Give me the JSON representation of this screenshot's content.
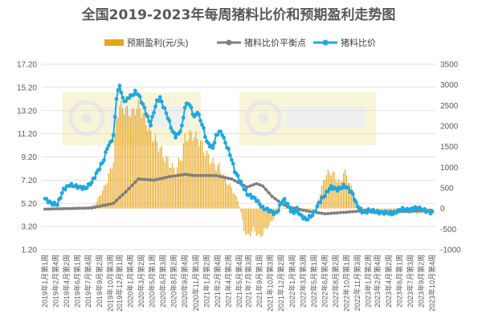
{
  "chart_data": {
    "type": "bar+line",
    "title": "全国2019-2023年每周猪料比价和预期盈利走势图",
    "legend": [
      {
        "key": "profit",
        "label": "预期盈利(元/头)",
        "color": "#e8a317"
      },
      {
        "key": "breakeven",
        "label": "猪料比价平衡点",
        "color": "#7f7f7f"
      },
      {
        "key": "ratio",
        "label": "猪料比价",
        "color": "#1fa8e0"
      }
    ],
    "left_axis": {
      "min": 1.2,
      "max": 17.2,
      "ticks": [
        "1.20",
        "3.20",
        "5.20",
        "7.20",
        "9.20",
        "11.20",
        "13.20",
        "15.20",
        "17.20"
      ]
    },
    "right_axis": {
      "min": -1000,
      "max": 3500,
      "ticks": [
        "-1000",
        "-500",
        "0",
        "500",
        "1000",
        "1500",
        "2000",
        "2500",
        "3000",
        "3500"
      ]
    },
    "x_tick_labels": [
      "2019年1月第1周",
      "2019年2月第4周",
      "2019年4月第2周",
      "2019年6月第1周",
      "2019年7月第4周",
      "2019年9月第2周",
      "2019年10月第3周",
      "2019年12月第1周",
      "2020年1月第4周",
      "2020年3月第2周",
      "2020年5月第1周",
      "2020年6月第3周",
      "2020年8月第2周",
      "2020年9月第4周",
      "2020年11月第3周",
      "2021年1月第2周",
      "2021年2月第4周",
      "2021年4月第2周",
      "2021年5月第4周",
      "2021年7月第3周",
      "2021年9月第1周",
      "2021年10月第3周",
      "2021年12月第2周",
      "2022年1月第4周",
      "2022年3月第3周",
      "2022年5月第1周",
      "2022年6月第4周",
      "2022年8月第2周",
      "2022年10月第1周",
      "2022年11月第3周",
      "2023年1月第2周",
      "2023年2月第4周",
      "2023年4月第2周",
      "2023年6月第1周",
      "2023年7月第3周",
      "2023年9月第2周",
      "2023年10月第4周"
    ],
    "week_count": 250,
    "ratio_keypoints": [
      [
        0,
        5.6
      ],
      [
        4,
        5.2
      ],
      [
        8,
        5.1
      ],
      [
        12,
        6.4
      ],
      [
        16,
        6.8
      ],
      [
        22,
        6.6
      ],
      [
        26,
        6.5
      ],
      [
        30,
        7.0
      ],
      [
        34,
        8.0
      ],
      [
        38,
        9.0
      ],
      [
        40,
        10.0
      ],
      [
        42,
        10.4
      ],
      [
        44,
        11.0
      ],
      [
        46,
        14.3
      ],
      [
        48,
        15.4
      ],
      [
        50,
        14.2
      ],
      [
        52,
        14.0
      ],
      [
        54,
        14.4
      ],
      [
        56,
        14.5
      ],
      [
        58,
        14.8
      ],
      [
        60,
        14.6
      ],
      [
        62,
        14.0
      ],
      [
        64,
        13.4
      ],
      [
        66,
        12.6
      ],
      [
        68,
        12.0
      ],
      [
        70,
        13.1
      ],
      [
        72,
        14.0
      ],
      [
        74,
        14.3
      ],
      [
        76,
        13.6
      ],
      [
        78,
        13.0
      ],
      [
        80,
        12.2
      ],
      [
        82,
        11.4
      ],
      [
        84,
        11.0
      ],
      [
        86,
        11.2
      ],
      [
        88,
        11.8
      ],
      [
        90,
        13.5
      ],
      [
        92,
        13.9
      ],
      [
        94,
        13.4
      ],
      [
        96,
        12.6
      ],
      [
        98,
        13.1
      ],
      [
        100,
        12.4
      ],
      [
        102,
        11.6
      ],
      [
        104,
        10.5
      ],
      [
        106,
        10.2
      ],
      [
        108,
        10.0
      ],
      [
        110,
        11.0
      ],
      [
        112,
        11.4
      ],
      [
        114,
        11.2
      ],
      [
        116,
        10.4
      ],
      [
        118,
        9.8
      ],
      [
        120,
        9.0
      ],
      [
        122,
        8.0
      ],
      [
        126,
        7.0
      ],
      [
        130,
        6.0
      ],
      [
        134,
        5.7
      ],
      [
        136,
        5.5
      ],
      [
        140,
        4.8
      ],
      [
        144,
        4.6
      ],
      [
        148,
        4.3
      ],
      [
        150,
        4.6
      ],
      [
        152,
        5.3
      ],
      [
        154,
        5.5
      ],
      [
        156,
        5.1
      ],
      [
        158,
        4.6
      ],
      [
        160,
        4.4
      ],
      [
        162,
        4.7
      ],
      [
        164,
        4.2
      ],
      [
        166,
        4.0
      ],
      [
        168,
        3.8
      ],
      [
        170,
        4.0
      ],
      [
        172,
        4.2
      ],
      [
        174,
        4.6
      ],
      [
        176,
        5.2
      ],
      [
        178,
        5.6
      ],
      [
        180,
        5.9
      ],
      [
        182,
        6.3
      ],
      [
        184,
        6.6
      ],
      [
        186,
        6.5
      ],
      [
        188,
        6.4
      ],
      [
        190,
        6.5
      ],
      [
        192,
        6.7
      ],
      [
        194,
        6.6
      ],
      [
        196,
        6.3
      ],
      [
        198,
        6.0
      ],
      [
        200,
        5.2
      ],
      [
        202,
        4.8
      ],
      [
        204,
        4.5
      ],
      [
        206,
        4.4
      ],
      [
        208,
        4.6
      ],
      [
        212,
        4.5
      ],
      [
        216,
        4.4
      ],
      [
        220,
        4.4
      ],
      [
        224,
        4.3
      ],
      [
        226,
        4.5
      ],
      [
        230,
        4.7
      ],
      [
        234,
        4.6
      ],
      [
        238,
        4.8
      ],
      [
        242,
        4.7
      ],
      [
        246,
        4.5
      ],
      [
        249,
        4.4
      ]
    ],
    "breakeven_keypoints": [
      [
        0,
        4.7
      ],
      [
        30,
        4.8
      ],
      [
        44,
        5.2
      ],
      [
        52,
        6.2
      ],
      [
        60,
        7.3
      ],
      [
        70,
        7.2
      ],
      [
        80,
        7.5
      ],
      [
        90,
        7.7
      ],
      [
        96,
        7.6
      ],
      [
        110,
        7.6
      ],
      [
        120,
        7.3
      ],
      [
        130,
        6.6
      ],
      [
        136,
        6.9
      ],
      [
        140,
        6.7
      ],
      [
        146,
        5.8
      ],
      [
        152,
        5.2
      ],
      [
        156,
        4.9
      ],
      [
        170,
        4.5
      ],
      [
        180,
        4.3
      ],
      [
        190,
        4.4
      ],
      [
        200,
        4.5
      ],
      [
        206,
        4.6
      ],
      [
        212,
        4.4
      ],
      [
        230,
        4.5
      ],
      [
        249,
        4.6
      ]
    ],
    "profit_keypoints": [
      [
        0,
        0
      ],
      [
        26,
        0
      ],
      [
        32,
        100
      ],
      [
        38,
        500
      ],
      [
        42,
        900
      ],
      [
        44,
        1200
      ],
      [
        46,
        2200
      ],
      [
        48,
        2500
      ],
      [
        52,
        2400
      ],
      [
        56,
        2300
      ],
      [
        60,
        2500
      ],
      [
        64,
        2200
      ],
      [
        68,
        1800
      ],
      [
        72,
        1600
      ],
      [
        76,
        1300
      ],
      [
        80,
        1100
      ],
      [
        84,
        900
      ],
      [
        88,
        1300
      ],
      [
        90,
        1700
      ],
      [
        94,
        1800
      ],
      [
        98,
        1700
      ],
      [
        100,
        1600
      ],
      [
        104,
        1300
      ],
      [
        108,
        1100
      ],
      [
        112,
        1000
      ],
      [
        116,
        700
      ],
      [
        120,
        500
      ],
      [
        124,
        200
      ],
      [
        126,
        -100
      ],
      [
        128,
        -500
      ],
      [
        130,
        -700
      ],
      [
        132,
        -600
      ],
      [
        134,
        -500
      ],
      [
        136,
        -600
      ],
      [
        138,
        -700
      ],
      [
        140,
        -600
      ],
      [
        142,
        -500
      ],
      [
        146,
        -300
      ],
      [
        150,
        -50
      ],
      [
        154,
        20
      ],
      [
        158,
        0
      ],
      [
        162,
        -50
      ],
      [
        166,
        -80
      ],
      [
        170,
        -50
      ],
      [
        174,
        0
      ],
      [
        178,
        500
      ],
      [
        180,
        800
      ],
      [
        184,
        900
      ],
      [
        188,
        700
      ],
      [
        190,
        600
      ],
      [
        192,
        900
      ],
      [
        194,
        800
      ],
      [
        196,
        600
      ],
      [
        198,
        400
      ],
      [
        200,
        200
      ],
      [
        204,
        0
      ],
      [
        210,
        -100
      ],
      [
        220,
        -120
      ],
      [
        230,
        -100
      ],
      [
        240,
        -120
      ],
      [
        249,
        -100
      ]
    ]
  }
}
